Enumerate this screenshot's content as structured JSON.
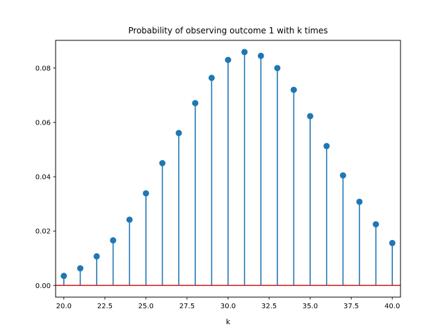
{
  "chart_data": {
    "type": "stem",
    "title": "Probability of observing outcome 1 with k times",
    "xlabel": "k",
    "ylabel": "",
    "xlim": [
      19.5,
      40.5
    ],
    "ylim": [
      -0.0043,
      0.0902
    ],
    "x_ticks": [
      20.0,
      22.5,
      25.0,
      27.5,
      30.0,
      32.5,
      35.0,
      37.5,
      40.0
    ],
    "x_tick_labels": [
      "20.0",
      "22.5",
      "25.0",
      "27.5",
      "30.0",
      "32.5",
      "35.0",
      "37.5",
      "40.0"
    ],
    "y_ticks": [
      0.0,
      0.02,
      0.04,
      0.06,
      0.08
    ],
    "y_tick_labels": [
      "0.00",
      "0.02",
      "0.04",
      "0.06",
      "0.08"
    ],
    "x": [
      20,
      21,
      22,
      23,
      24,
      25,
      26,
      27,
      28,
      29,
      30,
      31,
      32,
      33,
      34,
      35,
      36,
      37,
      38,
      39,
      40
    ],
    "y": [
      0.0035,
      0.0063,
      0.0107,
      0.0166,
      0.0242,
      0.0339,
      0.045,
      0.0561,
      0.0671,
      0.0764,
      0.083,
      0.0859,
      0.0845,
      0.08,
      0.072,
      0.0623,
      0.0513,
      0.0405,
      0.0308,
      0.0225,
      0.0156
    ],
    "baseline": 0,
    "grid": false,
    "legend": "none",
    "colors": {
      "stem": "#1f77b4",
      "baseline": "#d62728",
      "axis": "#000000"
    }
  }
}
